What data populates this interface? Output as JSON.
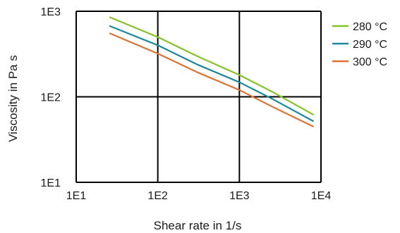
{
  "chart_data": {
    "type": "line",
    "xlabel": "Shear rate in 1/s",
    "ylabel": "Viscosity in Pa s",
    "x_scale": "log",
    "y_scale": "log",
    "xlim": [
      10,
      10000
    ],
    "ylim": [
      10,
      1000
    ],
    "x_ticks": [
      10,
      100,
      1000,
      10000
    ],
    "y_ticks": [
      10,
      100,
      1000
    ],
    "x_tick_labels": [
      "1E1",
      "1E2",
      "1E3",
      "1E4"
    ],
    "y_tick_labels": [
      "1E1",
      "1E2",
      "1E3"
    ],
    "grid": true,
    "legend_position": "right",
    "series": [
      {
        "name": "280 °C",
        "color": "#84c225",
        "x": [
          26,
          100,
          300,
          1000,
          2500,
          8000
        ],
        "y": [
          850,
          500,
          300,
          180,
          115,
          62
        ]
      },
      {
        "name": "290 °C",
        "color": "#1a8a9a",
        "x": [
          26,
          100,
          300,
          1000,
          2500,
          8000
        ],
        "y": [
          670,
          400,
          240,
          148,
          95,
          52
        ]
      },
      {
        "name": "300 °C",
        "color": "#e0712f",
        "x": [
          26,
          100,
          300,
          1000,
          2500,
          8000
        ],
        "y": [
          550,
          320,
          195,
          120,
          77,
          45
        ]
      }
    ]
  }
}
